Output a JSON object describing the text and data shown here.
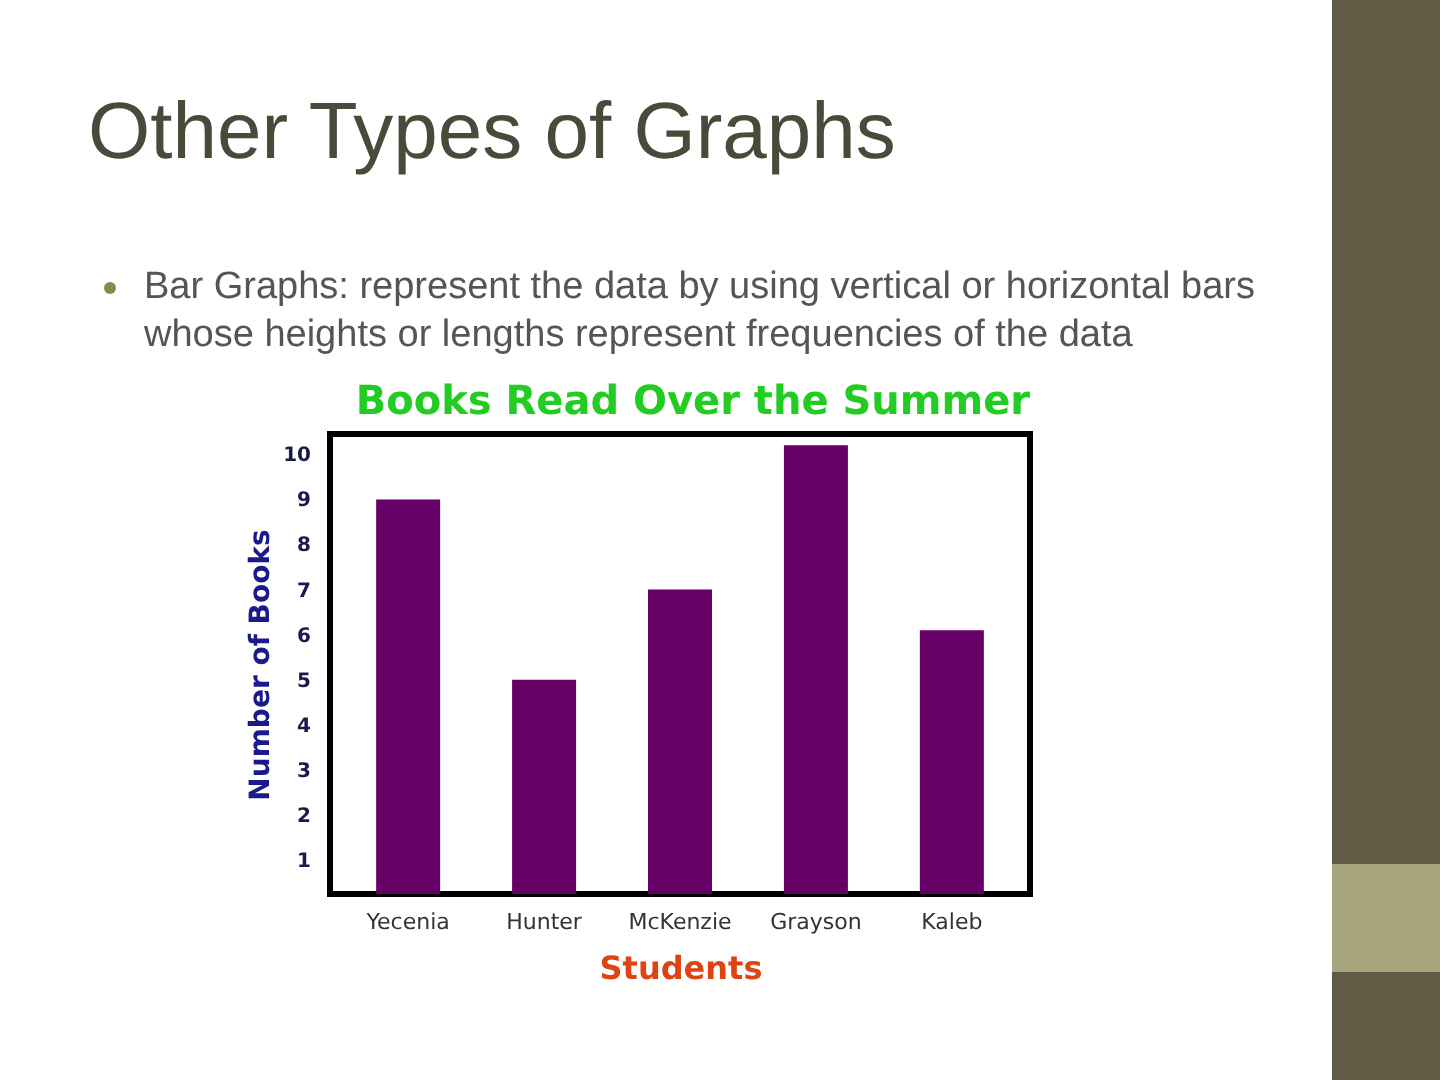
{
  "chart_data": {
    "type": "bar",
    "title": "Books Read Over the Summer",
    "xlabel": "Students",
    "ylabel": "Number of Books",
    "annotations": [
      "Other Types of Graphs",
      "Bar Graphs: represent the data by using vertical or horizontal bars whose heights or lengths represent frequencies of the data"
    ],
    "categories": [
      "Yecenia",
      "Hunter",
      "McKenzie",
      "Grayson",
      "Kaleb"
    ],
    "values": [
      9,
      5,
      7,
      10.2,
      6.1
    ],
    "color": "#660066",
    "ylim": [
      0.25,
      10.45
    ],
    "yticks": [
      1,
      2,
      3,
      4,
      5,
      6,
      7,
      8,
      9,
      10
    ],
    "grid": false
  }
}
